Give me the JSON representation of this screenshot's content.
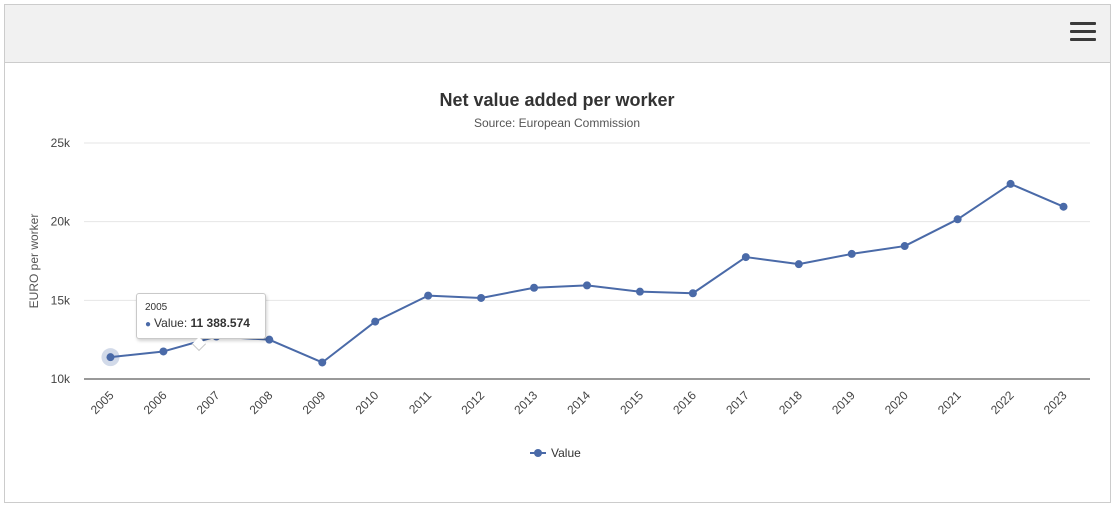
{
  "toolbar": {
    "menu_icon": "hamburger-menu-icon"
  },
  "chart_data": {
    "type": "line",
    "title": "Net value added per worker",
    "subtitle": "Source: European Commission",
    "xlabel": "",
    "ylabel": "EURO per worker",
    "ylim": [
      10000,
      25000
    ],
    "yticks": [
      10000,
      15000,
      20000,
      25000
    ],
    "ytick_labels": [
      "10k",
      "15k",
      "20k",
      "25k"
    ],
    "grid": true,
    "legend": "bottom-center",
    "color": "#4a6aa8",
    "categories": [
      "2005",
      "2006",
      "2007",
      "2008",
      "2009",
      "2010",
      "2011",
      "2012",
      "2013",
      "2014",
      "2015",
      "2016",
      "2017",
      "2018",
      "2019",
      "2020",
      "2021",
      "2022",
      "2023"
    ],
    "series": [
      {
        "name": "Value",
        "values": [
          11388.574,
          11750,
          12700,
          12500,
          11050,
          13650,
          15300,
          15150,
          15800,
          15950,
          15550,
          15450,
          17750,
          17300,
          17950,
          18450,
          20150,
          22400,
          20950
        ]
      }
    ]
  },
  "tooltip": {
    "header": "2005",
    "label": "Value:",
    "value": "11 388.574"
  }
}
